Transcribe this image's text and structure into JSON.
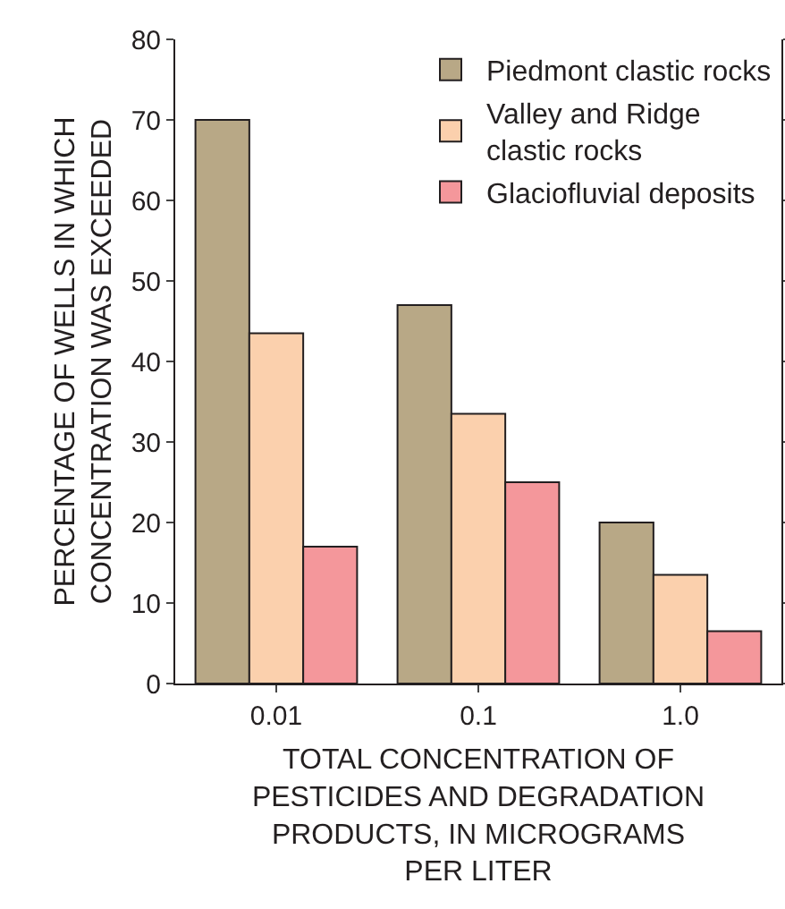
{
  "chart_data": {
    "type": "bar",
    "xlabel": "TOTAL CONCENTRATION OF PESTICIDES AND DEGRADATION PRODUCTS, IN MICROGRAMS PER LITER",
    "ylabel": "PERCENTAGE OF WELLS IN WHICH CONCENTRATION WAS EXCEEDED",
    "categories": [
      "0.01",
      "0.1",
      "1.0"
    ],
    "series": [
      {
        "name": "Piedmont clastic rocks",
        "color": "#b8a886",
        "values": [
          70,
          47,
          20
        ]
      },
      {
        "name": "Valley and Ridge clastic rocks",
        "color": "#fbd0ad",
        "values": [
          43.5,
          33.5,
          13.5
        ]
      },
      {
        "name": "Glaciofluvial deposits",
        "color": "#f4979b",
        "values": [
          17,
          25,
          6.5
        ]
      }
    ],
    "ylim": [
      0,
      80
    ],
    "yticks": [
      0,
      10,
      20,
      30,
      40,
      50,
      60,
      70,
      80
    ],
    "grid": false,
    "legend": "top right"
  }
}
